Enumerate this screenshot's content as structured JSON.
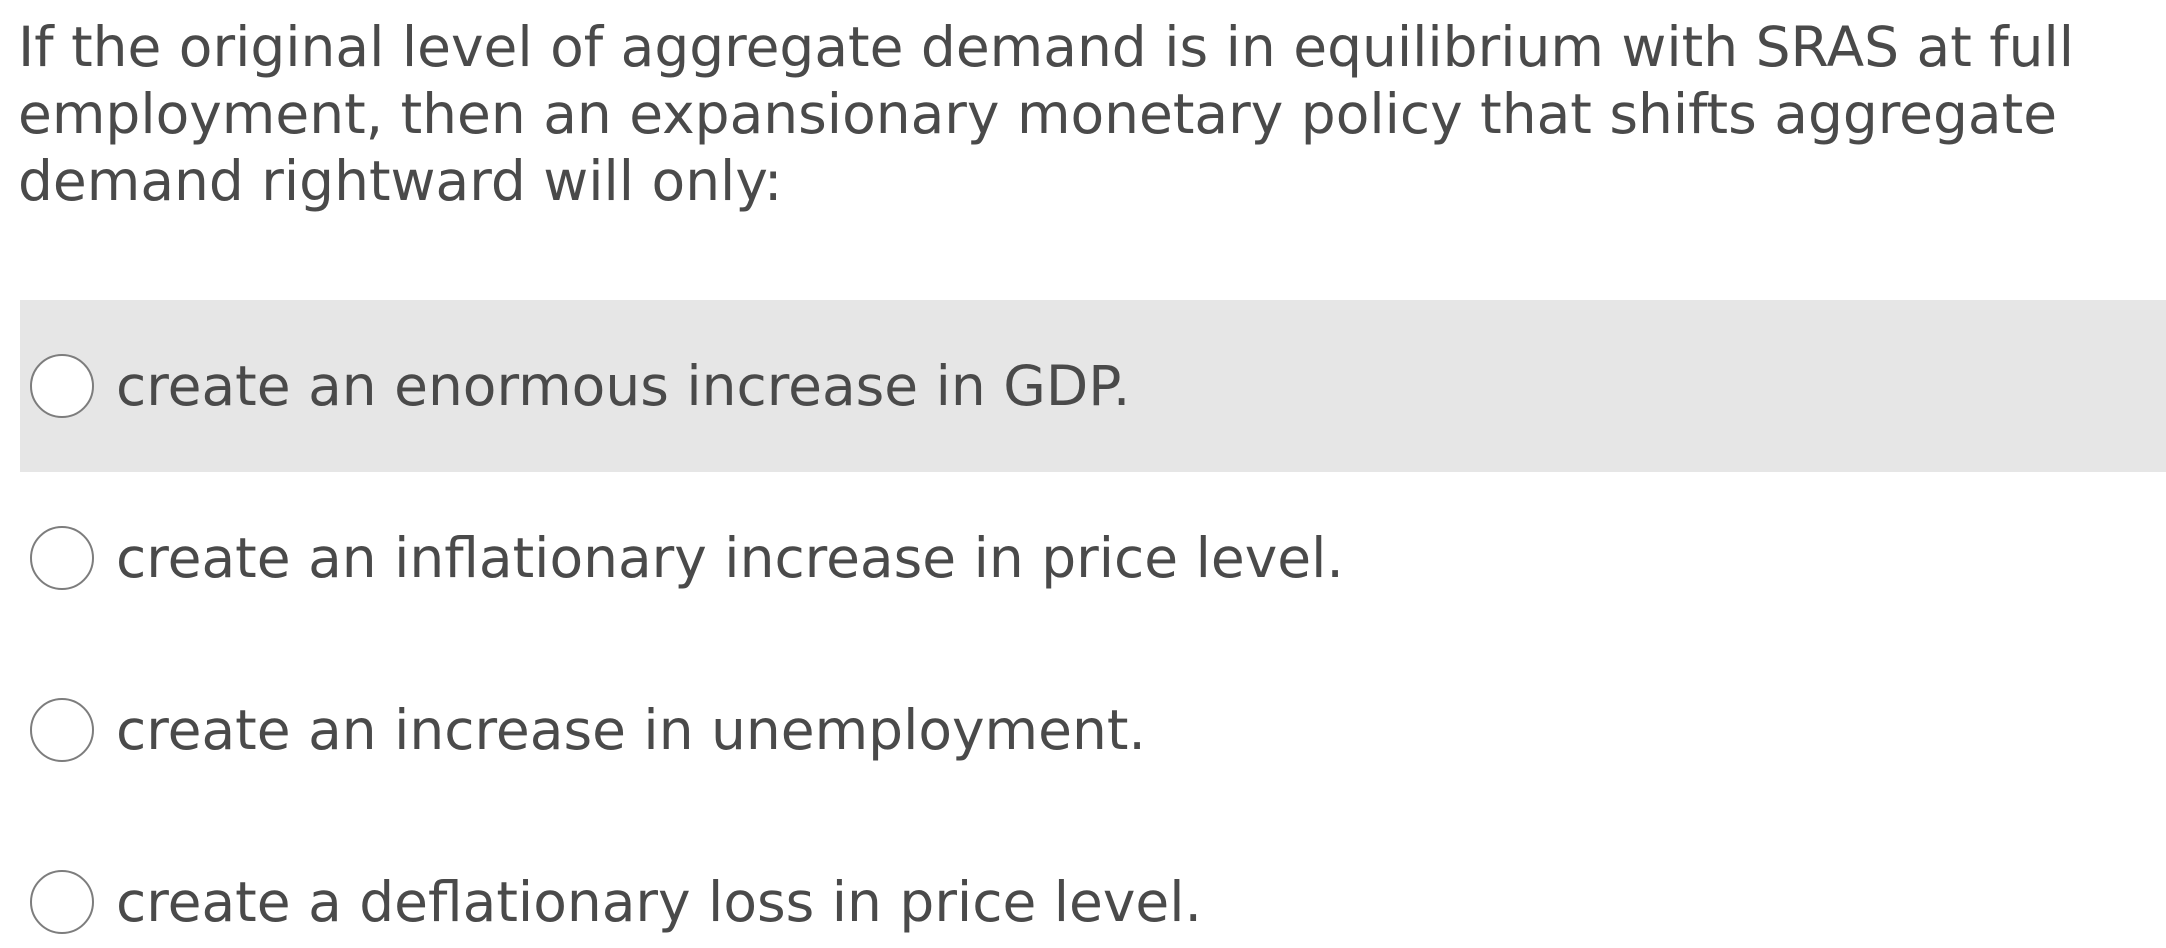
{
  "question": {
    "text": "If the original level of aggregate demand is in equilibrium with SRAS at full employment, then an expansionary monetary policy that shifts aggregate demand rightward will only:"
  },
  "options": [
    {
      "label": "create an enormous increase in GDP.",
      "selected": false,
      "hovered": true
    },
    {
      "label": "create an inflationary increase in price level.",
      "selected": false,
      "hovered": false
    },
    {
      "label": "create an increase in unemployment.",
      "selected": false,
      "hovered": false
    },
    {
      "label": "create a deflationary loss in price level.",
      "selected": false,
      "hovered": false
    }
  ],
  "colors": {
    "text": "#4a4a4a",
    "hover_background": "#e6e6e6",
    "radio_border": "#7d7d7d"
  }
}
